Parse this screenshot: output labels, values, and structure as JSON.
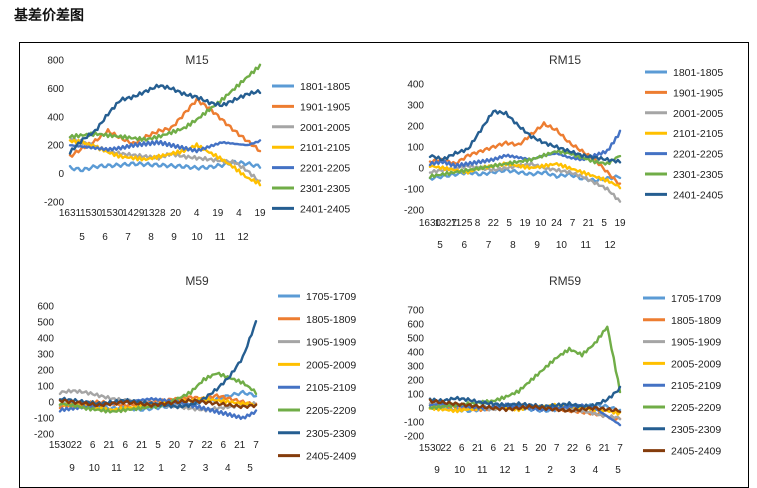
{
  "page_title": "基差价差图",
  "chart_data": [
    {
      "id": "m15",
      "type": "line",
      "title": "M15",
      "ylim": [
        -200,
        800
      ],
      "yticks": [
        -200,
        0,
        200,
        400,
        600,
        800
      ],
      "xtick_row1": [
        "1631",
        "1530",
        "1530",
        "1429",
        "1328",
        "20",
        "4",
        "19",
        "4",
        "19"
      ],
      "xtick_row2": [
        "5",
        "6",
        "7",
        "8",
        "9",
        "10",
        "11",
        "12"
      ],
      "series": [
        {
          "name": "1801-1805",
          "color": "#5b9bd5",
          "values": [
            40,
            25,
            50,
            55,
            60,
            70,
            65,
            60,
            55,
            50,
            40,
            45,
            60,
            80,
            70,
            50
          ]
        },
        {
          "name": "1901-1905",
          "color": "#ed7d31",
          "values": [
            120,
            180,
            230,
            300,
            250,
            210,
            260,
            300,
            320,
            420,
            520,
            460,
            380,
            300,
            230,
            160
          ]
        },
        {
          "name": "2001-2005",
          "color": "#a5a5a5",
          "values": [
            250,
            220,
            190,
            160,
            140,
            130,
            120,
            110,
            140,
            120,
            110,
            100,
            90,
            80,
            20,
            -60
          ]
        },
        {
          "name": "2101-2105",
          "color": "#ffc000",
          "values": [
            230,
            220,
            190,
            150,
            120,
            110,
            100,
            120,
            140,
            160,
            200,
            150,
            100,
            40,
            -30,
            -70
          ]
        },
        {
          "name": "2201-2205",
          "color": "#4472c4",
          "values": [
            200,
            190,
            180,
            170,
            180,
            200,
            210,
            220,
            200,
            180,
            160,
            190,
            220,
            210,
            200,
            230
          ]
        },
        {
          "name": "2301-2305",
          "color": "#70ad47",
          "values": [
            260,
            270,
            280,
            270,
            260,
            250,
            240,
            260,
            290,
            320,
            380,
            450,
            520,
            600,
            680,
            760
          ]
        },
        {
          "name": "2401-2405",
          "color": "#255e91",
          "values": [
            150,
            240,
            300,
            420,
            520,
            540,
            580,
            620,
            600,
            560,
            540,
            500,
            480,
            520,
            560,
            580
          ]
        }
      ]
    },
    {
      "id": "rm15",
      "type": "line",
      "title": "RM15",
      "ylim": [
        -200,
        400
      ],
      "yticks": [
        -200,
        -100,
        0,
        100,
        200,
        300,
        400
      ],
      "xtick_row1": [
        "1630",
        "1327",
        "1125",
        "8",
        "22",
        "5",
        "19",
        "10",
        "24",
        "7",
        "21",
        "5",
        "19"
      ],
      "xtick_row2": [
        "5",
        "6",
        "7",
        "8",
        "9",
        "10",
        "11",
        "12"
      ],
      "series": [
        {
          "name": "1801-1805",
          "color": "#5b9bd5",
          "values": [
            -50,
            -40,
            -30,
            -20,
            -30,
            -20,
            -10,
            -20,
            -30,
            -20,
            -40,
            -30,
            -50,
            -60,
            -50,
            -40
          ]
        },
        {
          "name": "1901-1905",
          "color": "#ed7d31",
          "values": [
            30,
            40,
            20,
            60,
            80,
            100,
            120,
            110,
            160,
            210,
            180,
            120,
            80,
            40,
            -20,
            -80
          ]
        },
        {
          "name": "2001-2005",
          "color": "#a5a5a5",
          "values": [
            -20,
            -10,
            0,
            10,
            0,
            -10,
            0,
            10,
            20,
            0,
            -10,
            -20,
            -40,
            -70,
            -100,
            -160
          ]
        },
        {
          "name": "2101-2105",
          "color": "#ffc000",
          "values": [
            10,
            0,
            -10,
            -20,
            0,
            10,
            20,
            10,
            0,
            10,
            20,
            0,
            -20,
            -40,
            -60,
            -90
          ]
        },
        {
          "name": "2201-2205",
          "color": "#4472c4",
          "values": [
            20,
            30,
            10,
            20,
            30,
            40,
            60,
            50,
            40,
            60,
            70,
            50,
            40,
            60,
            80,
            170
          ]
        },
        {
          "name": "2301-2305",
          "color": "#70ad47",
          "values": [
            -40,
            -30,
            -20,
            -10,
            0,
            10,
            20,
            30,
            40,
            60,
            80,
            70,
            50,
            30,
            20,
            60
          ]
        },
        {
          "name": "2401-2405",
          "color": "#255e91",
          "values": [
            60,
            40,
            70,
            90,
            180,
            270,
            260,
            200,
            150,
            120,
            100,
            80,
            60,
            50,
            40,
            30
          ]
        }
      ]
    },
    {
      "id": "m59",
      "type": "line",
      "title": "M59",
      "ylim": [
        -200,
        600
      ],
      "yticks": [
        -200,
        -100,
        0,
        100,
        200,
        300,
        400,
        500,
        600
      ],
      "xtick_row1": [
        "1530",
        "22",
        "6",
        "21",
        "6",
        "21",
        "5",
        "20",
        "7",
        "22",
        "6",
        "21",
        "7"
      ],
      "xtick_row2": [
        "9",
        "10",
        "11",
        "12",
        "1",
        "2",
        "3",
        "4",
        "5"
      ],
      "series": [
        {
          "name": "1705-1709",
          "color": "#5b9bd5",
          "values": [
            -20,
            -10,
            -20,
            -30,
            -40,
            -30,
            -50,
            -40,
            -30,
            -20,
            -10,
            0,
            20,
            40,
            60,
            40
          ]
        },
        {
          "name": "1805-1809",
          "color": "#ed7d31",
          "values": [
            -30,
            -20,
            -10,
            0,
            -10,
            -20,
            -10,
            0,
            10,
            20,
            30,
            20,
            40,
            20,
            0,
            -20
          ]
        },
        {
          "name": "1905-1909",
          "color": "#a5a5a5",
          "values": [
            60,
            70,
            60,
            40,
            20,
            10,
            0,
            -10,
            -20,
            -30,
            -40,
            -50,
            -40,
            -30,
            -20,
            -10
          ]
        },
        {
          "name": "2005-2009",
          "color": "#ffc000",
          "values": [
            -10,
            -20,
            -30,
            -40,
            -50,
            -40,
            -30,
            -20,
            -10,
            0,
            10,
            20,
            10,
            0,
            -10,
            -20
          ]
        },
        {
          "name": "2105-2109",
          "color": "#4472c4",
          "values": [
            -50,
            -40,
            -30,
            -20,
            -10,
            0,
            10,
            20,
            10,
            0,
            -20,
            -40,
            -60,
            -80,
            -100,
            -60
          ]
        },
        {
          "name": "2205-2209",
          "color": "#70ad47",
          "values": [
            -10,
            -20,
            -40,
            -50,
            -60,
            -50,
            -40,
            -30,
            -20,
            20,
            60,
            140,
            180,
            150,
            120,
            60
          ]
        },
        {
          "name": "2305-2309",
          "color": "#255e91",
          "values": [
            20,
            10,
            0,
            -10,
            0,
            10,
            0,
            -10,
            -20,
            -30,
            -20,
            20,
            80,
            160,
            280,
            500
          ]
        },
        {
          "name": "2405-2409",
          "color": "#843c0c",
          "values": [
            10,
            0,
            -10,
            -20,
            -10,
            0,
            -10,
            -20,
            -10,
            0,
            10,
            0,
            -10,
            -20,
            -30,
            -20
          ]
        }
      ]
    },
    {
      "id": "rm59",
      "type": "line",
      "title": "RM59",
      "ylim": [
        -200,
        700
      ],
      "yticks": [
        -200,
        -100,
        0,
        100,
        200,
        300,
        400,
        500,
        600,
        700
      ],
      "xtick_row1": [
        "1530",
        "22",
        "6",
        "21",
        "6",
        "21",
        "5",
        "20",
        "7",
        "22",
        "6",
        "21",
        "7"
      ],
      "xtick_row2": [
        "9",
        "10",
        "11",
        "12",
        "1",
        "2",
        "3",
        "4",
        "5"
      ],
      "series": [
        {
          "name": "1705-1709",
          "color": "#5b9bd5",
          "values": [
            10,
            0,
            -10,
            -20,
            -10,
            0,
            10,
            0,
            -10,
            -20,
            -10,
            0,
            10,
            20,
            10,
            -20
          ]
        },
        {
          "name": "1805-1809",
          "color": "#ed7d31",
          "values": [
            30,
            20,
            10,
            0,
            -10,
            0,
            10,
            20,
            10,
            0,
            -10,
            -20,
            -30,
            -40,
            -60,
            -80
          ]
        },
        {
          "name": "1905-1909",
          "color": "#a5a5a5",
          "values": [
            40,
            30,
            20,
            10,
            0,
            -10,
            0,
            10,
            20,
            10,
            0,
            -10,
            -20,
            -40,
            -60,
            -70
          ]
        },
        {
          "name": "2005-2009",
          "color": "#ffc000",
          "values": [
            0,
            -10,
            -20,
            -10,
            0,
            10,
            0,
            -10,
            0,
            10,
            20,
            10,
            0,
            -10,
            -20,
            -40
          ]
        },
        {
          "name": "2105-2109",
          "color": "#4472c4",
          "values": [
            20,
            30,
            20,
            10,
            0,
            10,
            20,
            10,
            0,
            -10,
            0,
            10,
            20,
            0,
            -60,
            -120
          ]
        },
        {
          "name": "2205-2209",
          "color": "#70ad47",
          "values": [
            0,
            10,
            20,
            30,
            40,
            50,
            80,
            120,
            200,
            280,
            360,
            420,
            380,
            460,
            580,
            120
          ]
        },
        {
          "name": "2305-2309",
          "color": "#255e91",
          "values": [
            60,
            50,
            70,
            60,
            40,
            30,
            20,
            30,
            20,
            10,
            20,
            30,
            10,
            20,
            60,
            140
          ]
        },
        {
          "name": "2405-2409",
          "color": "#843c0c",
          "values": [
            50,
            40,
            30,
            20,
            10,
            0,
            -10,
            0,
            10,
            0,
            -10,
            -20,
            -10,
            0,
            -10,
            -20
          ]
        }
      ]
    }
  ]
}
